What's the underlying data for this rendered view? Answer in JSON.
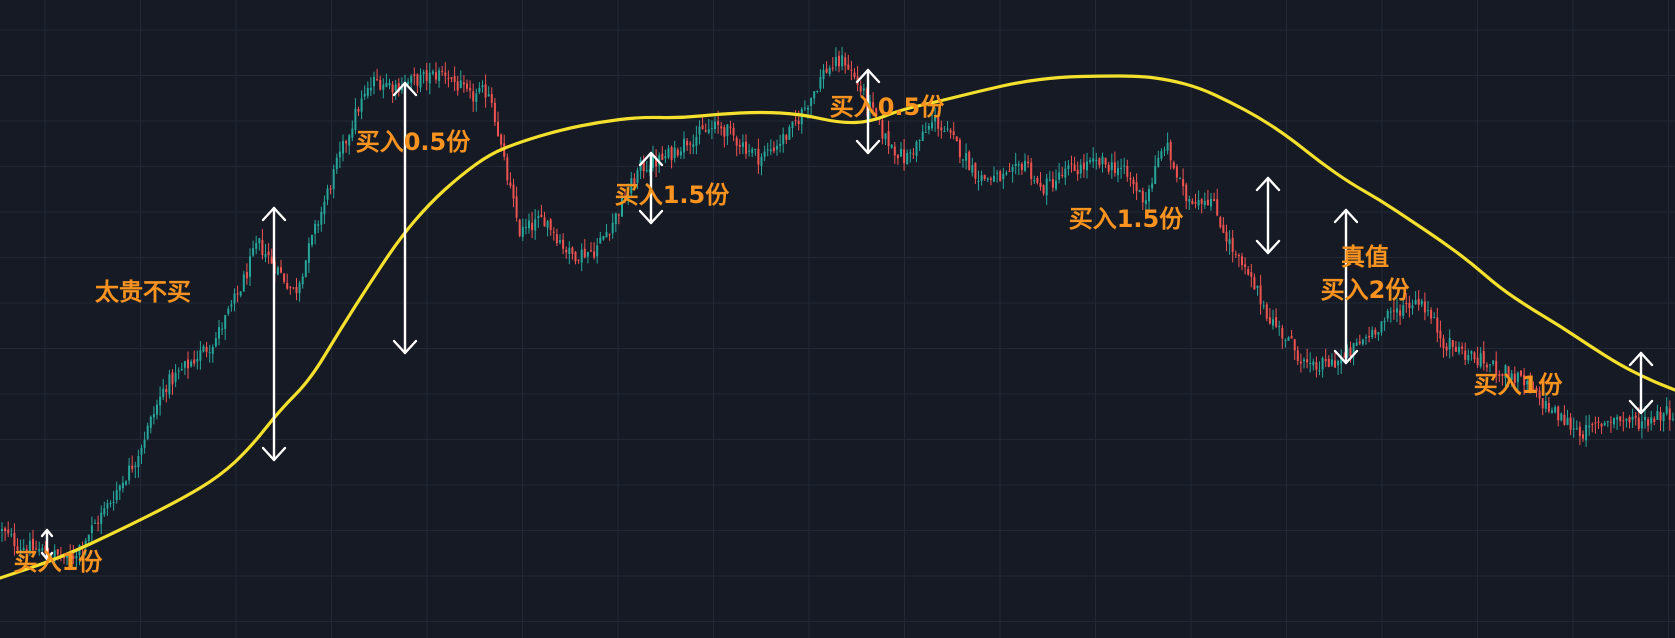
{
  "chart_data": {
    "type": "candlestick",
    "title": "",
    "xlabel": "",
    "ylabel": "",
    "grid": true,
    "ylim": [
      0,
      638
    ],
    "y_axis_inverted_note": "",
    "colors": {
      "background": "#161a25",
      "grid": "#232837",
      "up": "#26a69a",
      "down": "#ef5350",
      "moving_average": "#f5e12d",
      "annotation_text": "#f7931e",
      "arrow": "#ffffff"
    },
    "price_path": [
      [
        0,
        108
      ],
      [
        20,
        92
      ],
      [
        45,
        86
      ],
      [
        70,
        78
      ],
      [
        105,
        128
      ],
      [
        135,
        178
      ],
      [
        165,
        252
      ],
      [
        215,
        298
      ],
      [
        240,
        348
      ],
      [
        258,
        395
      ],
      [
        275,
        372
      ],
      [
        295,
        345
      ],
      [
        312,
        398
      ],
      [
        335,
        468
      ],
      [
        358,
        530
      ],
      [
        375,
        558
      ],
      [
        395,
        552
      ],
      [
        425,
        560
      ],
      [
        445,
        566
      ],
      [
        470,
        540
      ],
      [
        490,
        548
      ],
      [
        505,
        470
      ],
      [
        520,
        405
      ],
      [
        545,
        420
      ],
      [
        570,
        383
      ],
      [
        595,
        388
      ],
      [
        615,
        420
      ],
      [
        640,
        470
      ],
      [
        665,
        480
      ],
      [
        690,
        500
      ],
      [
        720,
        512
      ],
      [
        760,
        480
      ],
      [
        790,
        505
      ],
      [
        810,
        540
      ],
      [
        825,
        568
      ],
      [
        845,
        578
      ],
      [
        865,
        540
      ],
      [
        885,
        500
      ],
      [
        905,
        478
      ],
      [
        935,
        518
      ],
      [
        955,
        495
      ],
      [
        980,
        460
      ],
      [
        1010,
        460
      ],
      [
        1025,
        478
      ],
      [
        1040,
        448
      ],
      [
        1070,
        468
      ],
      [
        1100,
        475
      ],
      [
        1120,
        470
      ],
      [
        1145,
        438
      ],
      [
        1165,
        495
      ],
      [
        1185,
        440
      ],
      [
        1210,
        440
      ],
      [
        1235,
        382
      ],
      [
        1255,
        350
      ],
      [
        1270,
        320
      ],
      [
        1290,
        295
      ],
      [
        1310,
        268
      ],
      [
        1330,
        275
      ],
      [
        1345,
        280
      ],
      [
        1375,
        310
      ],
      [
        1400,
        330
      ],
      [
        1420,
        340
      ],
      [
        1445,
        295
      ],
      [
        1470,
        282
      ],
      [
        1495,
        270
      ],
      [
        1520,
        258
      ],
      [
        1540,
        238
      ],
      [
        1560,
        220
      ],
      [
        1585,
        205
      ],
      [
        1610,
        220
      ],
      [
        1640,
        216
      ],
      [
        1665,
        226
      ]
    ],
    "moving_average_path": [
      [
        0,
        60
      ],
      [
        60,
        80
      ],
      [
        120,
        108
      ],
      [
        180,
        138
      ],
      [
        220,
        162
      ],
      [
        250,
        190
      ],
      [
        280,
        228
      ],
      [
        310,
        258
      ],
      [
        340,
        308
      ],
      [
        370,
        355
      ],
      [
        400,
        400
      ],
      [
        430,
        435
      ],
      [
        460,
        462
      ],
      [
        490,
        484
      ],
      [
        520,
        496
      ],
      [
        560,
        508
      ],
      [
        600,
        516
      ],
      [
        640,
        521
      ],
      [
        680,
        520
      ],
      [
        720,
        524
      ],
      [
        760,
        526
      ],
      [
        800,
        524
      ],
      [
        840,
        515
      ],
      [
        870,
        516
      ],
      [
        900,
        528
      ],
      [
        940,
        537
      ],
      [
        980,
        547
      ],
      [
        1020,
        556
      ],
      [
        1060,
        561
      ],
      [
        1100,
        562
      ],
      [
        1140,
        562
      ],
      [
        1170,
        558
      ],
      [
        1200,
        550
      ],
      [
        1230,
        536
      ],
      [
        1260,
        520
      ],
      [
        1290,
        500
      ],
      [
        1320,
        476
      ],
      [
        1350,
        455
      ],
      [
        1380,
        438
      ],
      [
        1410,
        418
      ],
      [
        1440,
        398
      ],
      [
        1470,
        376
      ],
      [
        1500,
        350
      ],
      [
        1530,
        330
      ],
      [
        1560,
        312
      ],
      [
        1590,
        292
      ],
      [
        1620,
        273
      ],
      [
        1650,
        258
      ],
      [
        1675,
        248
      ]
    ],
    "annotations": [
      {
        "text_lines": [
          "买入1份"
        ],
        "label_x": 58,
        "label_y": 75,
        "arrow": [
          47,
          79,
          108
        ]
      },
      {
        "text_lines": [
          "太贵不买"
        ],
        "label_x": 143,
        "label_y": 345,
        "arrow": [
          274,
          178,
          430
        ]
      },
      {
        "text_lines": [
          "买入0.5份"
        ],
        "label_x": 413,
        "label_y": 495,
        "arrow": [
          405,
          285,
          555
        ]
      },
      {
        "text_lines": [
          "买入1.5份"
        ],
        "label_x": 672,
        "label_y": 442,
        "arrow": [
          651,
          415,
          485
        ]
      },
      {
        "text_lines": [
          "买入0.5份"
        ],
        "label_x": 887,
        "label_y": 530,
        "arrow": [
          868,
          485,
          568
        ]
      },
      {
        "text_lines": [
          "买入1.5份"
        ],
        "label_x": 1126,
        "label_y": 418,
        "arrow": [
          1268,
          385,
          460
        ]
      },
      {
        "text_lines": [
          "真值",
          "买入2份"
        ],
        "label_x": 1365,
        "label_y": 380,
        "label_y2": 347,
        "arrow": [
          1346,
          275,
          428
        ]
      },
      {
        "text_lines": [
          "买入1份"
        ],
        "label_x": 1518,
        "label_y": 252,
        "arrow": [
          1641,
          225,
          285
        ]
      }
    ]
  }
}
